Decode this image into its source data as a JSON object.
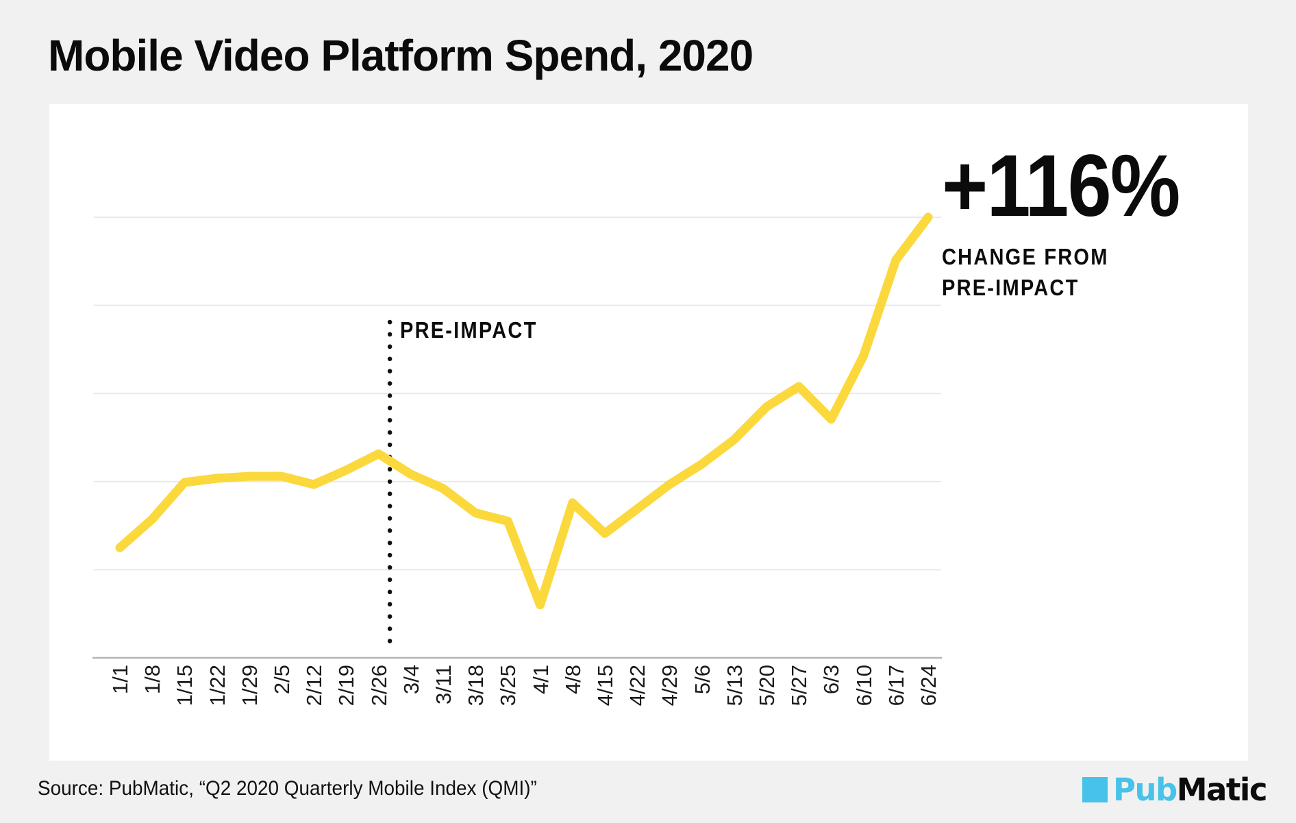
{
  "page": {
    "title": "Mobile Video Platform Spend, 2020",
    "background_color": "#f1f1f1",
    "card_background_color": "#ffffff"
  },
  "annotation": {
    "value": "+116%",
    "caption_line1": "CHANGE FROM",
    "caption_line2": "PRE-IMPACT"
  },
  "marker": {
    "label": "PRE-IMPACT"
  },
  "footer": {
    "source": "Source: PubMatic, “Q2 2020 Quarterly Mobile Index (QMI)”"
  },
  "logo": {
    "part1": "Pub",
    "part2": "Matic",
    "square_color": "#47c2e8",
    "part1_color": "#47c2e8",
    "part2_color": "#0c0c0c"
  },
  "chart_data": {
    "type": "line",
    "title": "Mobile Video Platform Spend, 2020",
    "categories": [
      "1/1",
      "1/8",
      "1/15",
      "1/22",
      "1/29",
      "2/5",
      "2/12",
      "2/19",
      "2/26",
      "3/4",
      "3/11",
      "3/18",
      "3/25",
      "4/1",
      "4/8",
      "4/15",
      "4/22",
      "4/29",
      "5/6",
      "5/13",
      "5/20",
      "5/27",
      "6/3",
      "6/10",
      "6/17",
      "6/24"
    ],
    "values": [
      54,
      68,
      86,
      88,
      89,
      89,
      85,
      92,
      100,
      90,
      83,
      71,
      67,
      26,
      76,
      61,
      73,
      85,
      95,
      107,
      123,
      133,
      117,
      148,
      195,
      216
    ],
    "value_basis": "index, pre-impact = 100",
    "xlabel": "",
    "ylabel": "",
    "ylim": [
      0,
      216
    ],
    "y_tick_labels_shown": false,
    "grid": "horizontal",
    "gridline_count": 5,
    "line_color": "#fbd83c",
    "line_width": 13,
    "gridline_color": "#e9e9e9",
    "axis_line_color": "#b4b4b4",
    "marker_line": {
      "label": "PRE-IMPACT",
      "style": "dotted",
      "color": "#111111",
      "between_categories": [
        "2/26",
        "3/4"
      ],
      "x_index": 8.35
    },
    "end_annotation": {
      "text": "+116%",
      "caption": "CHANGE FROM PRE-IMPACT",
      "at_category": "6/24"
    }
  }
}
